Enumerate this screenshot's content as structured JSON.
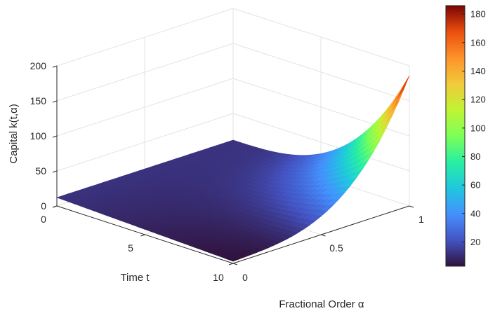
{
  "chart_data": {
    "type": "surface",
    "ylabel": "Capital k(t,α)",
    "xlabel": "Time t",
    "alpha_label": "Fractional Order α",
    "t_range": [
      0,
      10
    ],
    "alpha_range": [
      0,
      1
    ],
    "zlim": [
      0,
      200
    ],
    "t_ticks": [
      "0",
      "5",
      "10"
    ],
    "alpha_ticks": [
      "0",
      "0.5",
      "1"
    ],
    "z_ticks": [
      "0",
      "50",
      "100",
      "150",
      "200"
    ],
    "grid": true,
    "colormap": "turbo",
    "colorbar": {
      "location": "right",
      "range": [
        3,
        186
      ],
      "ticks": [
        "20",
        "40",
        "60",
        "80",
        "100",
        "120",
        "140",
        "160",
        "180"
      ]
    },
    "surface_samples": {
      "t": [
        0,
        5,
        10
      ],
      "alpha": [
        0,
        0.5,
        1
      ],
      "k": [
        [
          12,
          12,
          12
        ],
        [
          9,
          13,
          30
        ],
        [
          3,
          20,
          186
        ]
      ]
    }
  }
}
